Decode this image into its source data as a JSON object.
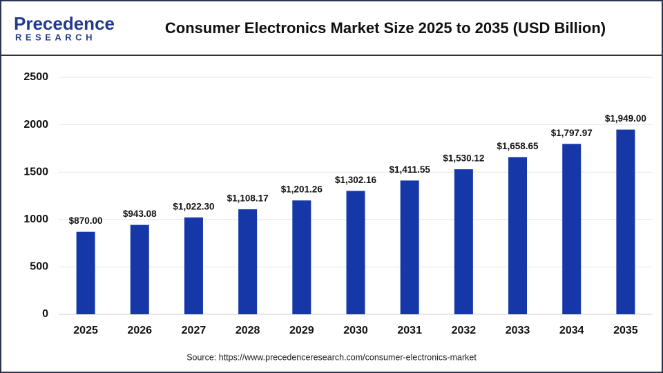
{
  "logo": {
    "name": "Precedence",
    "sub": "RESEARCH"
  },
  "chart_data": {
    "type": "bar",
    "title": "Consumer Electronics Market Size 2025 to 2035 (USD Billion)",
    "categories": [
      "2025",
      "2026",
      "2027",
      "2028",
      "2029",
      "2030",
      "2031",
      "2032",
      "2033",
      "2034",
      "2035"
    ],
    "values": [
      870.0,
      943.08,
      1022.3,
      1108.17,
      1201.26,
      1302.16,
      1411.55,
      1530.12,
      1658.65,
      1797.97,
      1949.0
    ],
    "value_labels": [
      "$870.00",
      "$943.08",
      "$1,022.30",
      "$1,108.17",
      "$1,201.26",
      "$1,302.16",
      "$1,411.55",
      "$1,530.12",
      "$1,658.65",
      "$1,797.97",
      "$1,949.00"
    ],
    "color": "#1537a8",
    "ylim": [
      0,
      2500
    ],
    "yticks": [
      0,
      500,
      1000,
      1500,
      2000,
      2500
    ],
    "grid": true,
    "source": "Source: https://www.precedenceresearch.com/consumer-electronics-market"
  }
}
